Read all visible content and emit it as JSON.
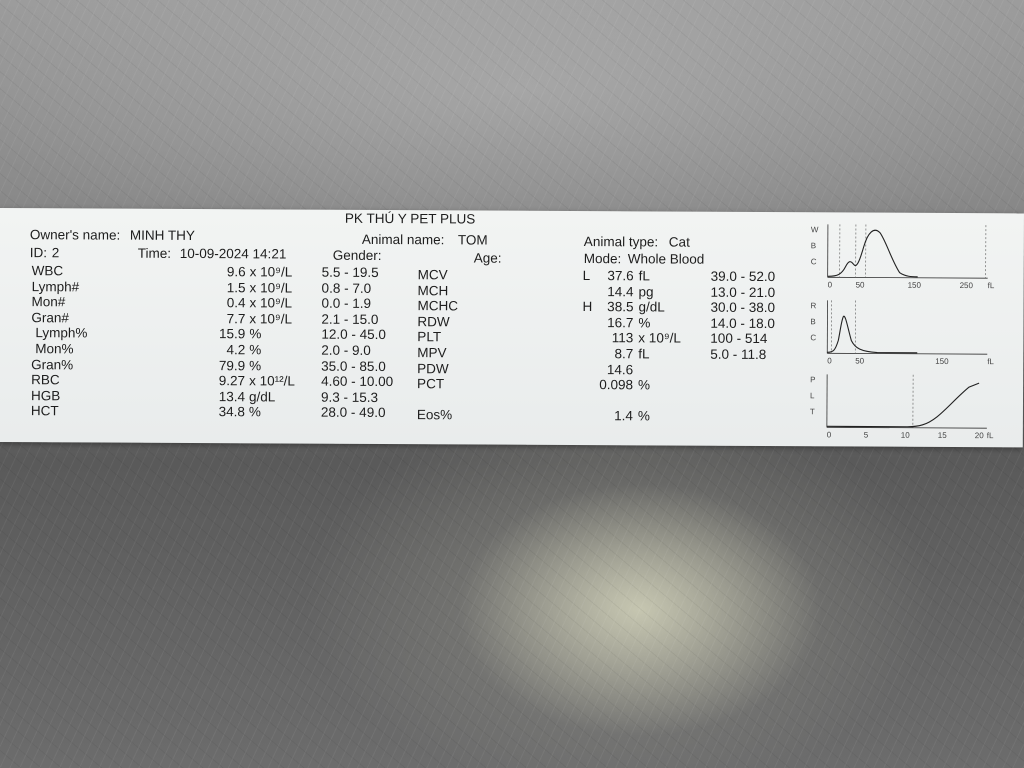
{
  "header": {
    "clinic": "PK THÚ Y PET PLUS",
    "owner_label": "Owner's name:",
    "owner": "MINH THY",
    "animal_name_label": "Animal name:",
    "animal_name": "TOM",
    "animal_type_label": "Animal type:",
    "animal_type": "Cat",
    "id_label": "ID:",
    "id": "2",
    "time_label": "Time:",
    "time": "10-09-2024 14:21",
    "gender_label": "Gender:",
    "gender": "",
    "age_label": "Age:",
    "age": "",
    "mode_label": "Mode:",
    "mode": "Whole Blood"
  },
  "left_results": [
    {
      "name": "WBC",
      "value": "9.6",
      "unit": "x 10⁹/L",
      "range": "5.5 -  19.5"
    },
    {
      "name": "Lymph#",
      "value": "1.5",
      "unit": "x 10⁹/L",
      "range": "0.8 -   7.0"
    },
    {
      "name": "Mon#",
      "value": "0.4",
      "unit": "x 10⁹/L",
      "range": "0.0 -   1.9"
    },
    {
      "name": "Gran#",
      "value": "7.7",
      "unit": "x 10⁹/L",
      "range": "2.1 -  15.0"
    },
    {
      "name": "Lymph%",
      "value": "15.9",
      "unit": "%",
      "range": "12.0 -  45.0"
    },
    {
      "name": "Mon%",
      "value": "4.2",
      "unit": "%",
      "range": "2.0 -   9.0"
    },
    {
      "name": "Gran%",
      "value": "79.9",
      "unit": "%",
      "range": "35.0 -  85.0"
    },
    {
      "name": "RBC",
      "value": "9.27",
      "unit": "x 10¹²/L",
      "range": "4.60 - 10.00"
    },
    {
      "name": "HGB",
      "value": "13.4",
      "unit": "g/dL",
      "range": "9.3 -  15.3"
    },
    {
      "name": "HCT",
      "value": "34.8",
      "unit": "%",
      "range": "28.0 -  49.0"
    }
  ],
  "right_results": [
    {
      "name": "MCV",
      "flag": "L",
      "value": "37.6",
      "unit": "fL",
      "range": "39.0 -  52.0"
    },
    {
      "name": "MCH",
      "flag": "",
      "value": "14.4",
      "unit": "pg",
      "range": "13.0 -  21.0"
    },
    {
      "name": "MCHC",
      "flag": "H",
      "value": "38.5",
      "unit": "g/dL",
      "range": "30.0 -  38.0"
    },
    {
      "name": "RDW",
      "flag": "",
      "value": "16.7",
      "unit": "%",
      "range": "14.0 -  18.0"
    },
    {
      "name": "PLT",
      "flag": "",
      "value": "113",
      "unit": "x 10⁹/L",
      "range": "100 -  514"
    },
    {
      "name": "MPV",
      "flag": "",
      "value": "8.7",
      "unit": "fL",
      "range": "5.0 -  11.8"
    },
    {
      "name": "PDW",
      "flag": "",
      "value": "14.6",
      "unit": "",
      "range": ""
    },
    {
      "name": "PCT",
      "flag": "",
      "value": "0.098",
      "unit": "%",
      "range": ""
    },
    {
      "name": "",
      "flag": "",
      "value": "",
      "unit": "",
      "range": ""
    },
    {
      "name": "Eos%",
      "flag": "",
      "value": "1.4",
      "unit": "%",
      "range": ""
    }
  ],
  "histograms": [
    {
      "letters": [
        "W",
        "B",
        "C"
      ],
      "ticks": [
        "0",
        "50",
        "150",
        "250"
      ],
      "unit": "fL"
    },
    {
      "letters": [
        "R",
        "B",
        "C"
      ],
      "ticks": [
        "0",
        "50",
        "150"
      ],
      "unit": "fL"
    },
    {
      "letters": [
        "P",
        "L",
        "T"
      ],
      "ticks": [
        "0",
        "5",
        "10",
        "15",
        "20"
      ],
      "unit": "fL"
    }
  ],
  "colors": {
    "paper": "#eef0ef",
    "ink": "#1e1e1e",
    "metal": "#8a8a8a"
  }
}
